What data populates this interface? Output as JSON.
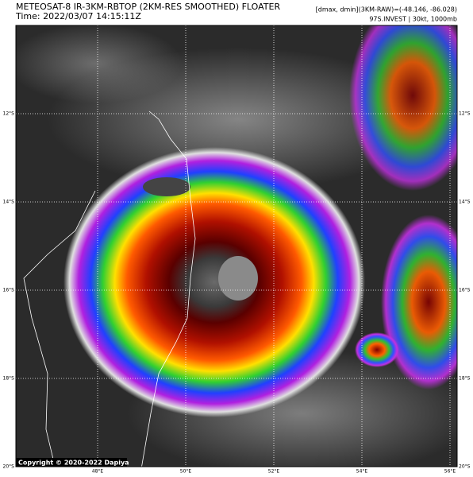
{
  "header": {
    "title": "METEOSAT-8 IR-3KM-RBTOP (2KM-RES SMOOTHED) FLOATER",
    "time": "Time: 2022/03/07 14:15:11Z",
    "stats": "[dmax, dmin](3KM-RAW)=(-48.146, -86.028)",
    "storm": "97S.INVEST | 30kt, 1000mb"
  },
  "map": {
    "lon_labels": [
      "48°E",
      "50°E",
      "52°E",
      "54°E",
      "56°E"
    ],
    "lat_labels_left": [
      "12°S",
      "14°S",
      "16°S",
      "18°S",
      "20°S"
    ],
    "lat_labels_right": [
      "12°S",
      "14°S",
      "16°S",
      "18°S",
      "20°S"
    ]
  },
  "copyright": "Copyright © 2020-2022 Dapiya"
}
